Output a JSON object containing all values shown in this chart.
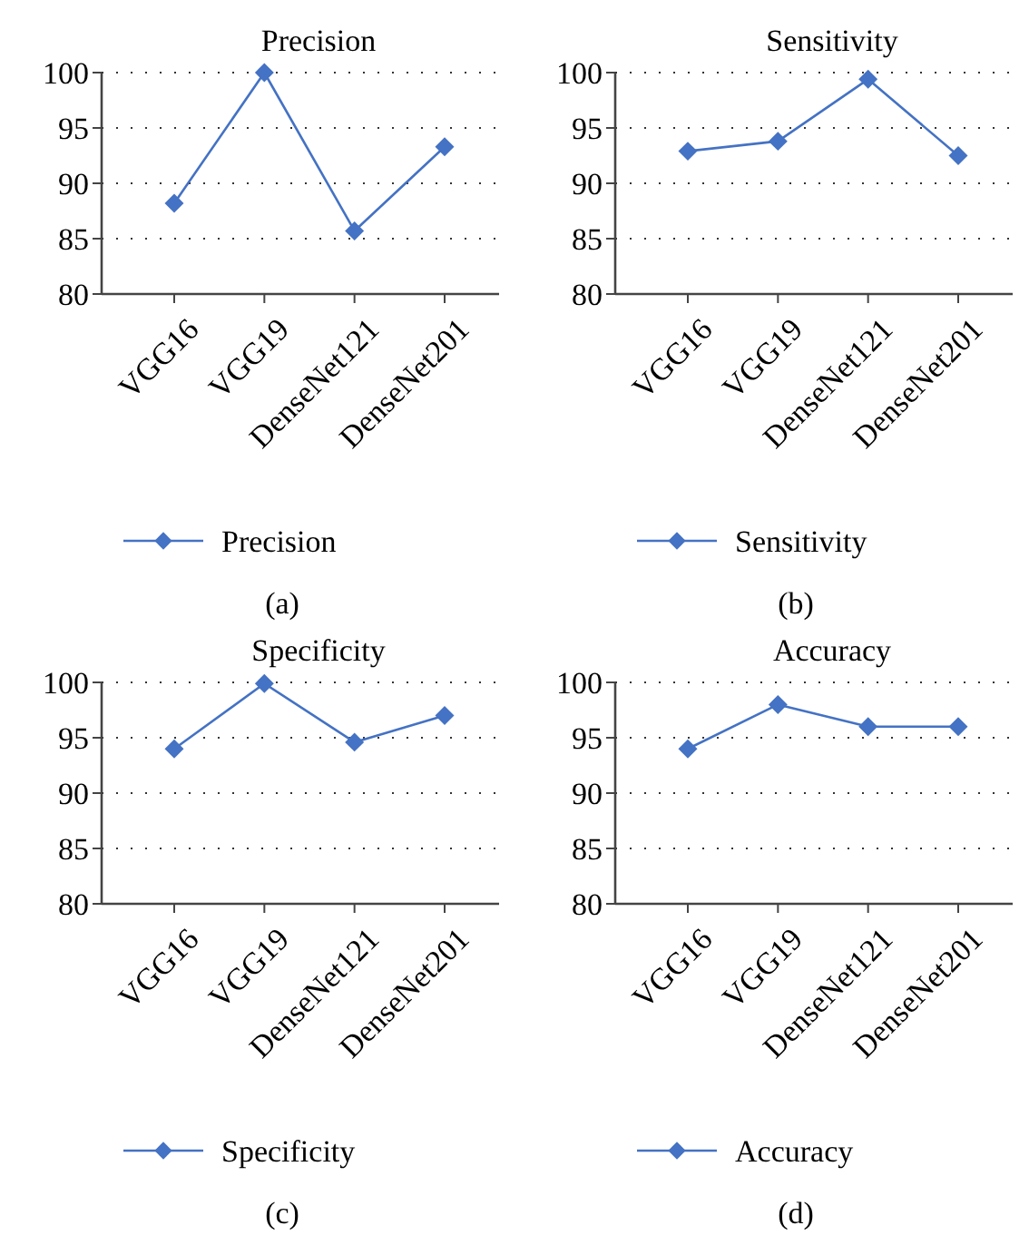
{
  "chart_data": [
    {
      "type": "line",
      "title": "Precision",
      "categories": [
        "VGG16",
        "VGG19",
        "DenseNet121",
        "DenseNet201"
      ],
      "series": [
        {
          "name": "Precision",
          "color": "#4472c4",
          "values": [
            88.2,
            100,
            85.7,
            93.3
          ]
        }
      ],
      "ylim": [
        80,
        100
      ],
      "yticks": [
        80,
        85,
        90,
        95,
        100
      ],
      "grid": "y",
      "legend": "bottom",
      "marker": "diamond",
      "annotations": [
        "(a)"
      ]
    },
    {
      "type": "line",
      "title": "Sensitivity",
      "categories": [
        "VGG16",
        "VGG19",
        "DenseNet121",
        "DenseNet201"
      ],
      "series": [
        {
          "name": "Sensitivity",
          "color": "#4472c4",
          "values": [
            92.9,
            93.8,
            99.4,
            92.5
          ]
        }
      ],
      "ylim": [
        80,
        100
      ],
      "yticks": [
        80,
        85,
        90,
        95,
        100
      ],
      "grid": "y",
      "legend": "bottom",
      "marker": "diamond",
      "annotations": [
        "(b)"
      ]
    },
    {
      "type": "line",
      "title": "Specificity",
      "categories": [
        "VGG16",
        "VGG19",
        "DenseNet121",
        "DenseNet201"
      ],
      "series": [
        {
          "name": "Specificity",
          "color": "#4472c4",
          "values": [
            94.0,
            99.9,
            94.6,
            97.0
          ]
        }
      ],
      "ylim": [
        80,
        100
      ],
      "yticks": [
        80,
        85,
        90,
        95,
        100
      ],
      "grid": "y",
      "legend": "bottom",
      "marker": "diamond",
      "annotations": [
        "(c)"
      ]
    },
    {
      "type": "line",
      "title": "Accuracy",
      "categories": [
        "VGG16",
        "VGG19",
        "DenseNet121",
        "DenseNet201"
      ],
      "series": [
        {
          "name": "Accuracy",
          "color": "#4472c4",
          "values": [
            94,
            98,
            96,
            96
          ]
        }
      ],
      "ylim": [
        80,
        100
      ],
      "yticks": [
        80,
        85,
        90,
        95,
        100
      ],
      "grid": "y",
      "legend": "bottom",
      "marker": "diamond",
      "annotations": [
        "(d)"
      ]
    }
  ]
}
